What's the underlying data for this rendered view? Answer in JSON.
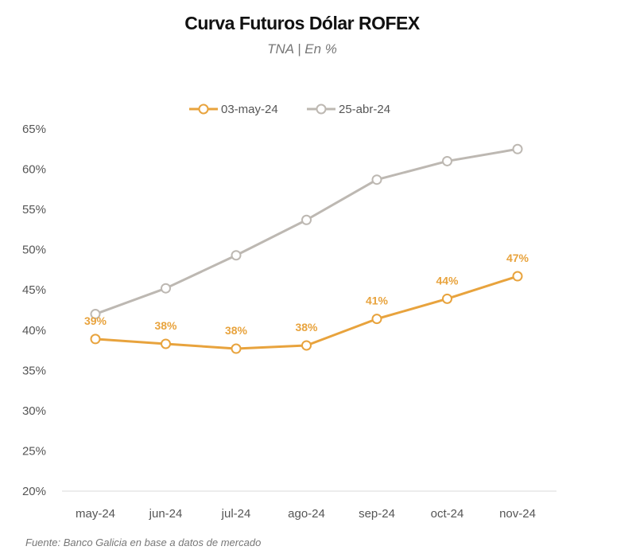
{
  "chart_data": {
    "type": "line",
    "title": "Curva Futuros Dólar ROFEX",
    "subtitle": "TNA | En %",
    "categories": [
      "may-24",
      "jun-24",
      "jul-24",
      "ago-24",
      "sep-24",
      "oct-24",
      "nov-24"
    ],
    "series": [
      {
        "name": "03-may-24",
        "color": "#e8a33d",
        "values": [
          38.9,
          38.3,
          37.7,
          38.1,
          41.4,
          43.9,
          46.7
        ],
        "labels": [
          "39%",
          "38%",
          "38%",
          "38%",
          "41%",
          "44%",
          "47%"
        ]
      },
      {
        "name": "25-abr-24",
        "color": "#bdb8b2",
        "values": [
          42.0,
          45.2,
          49.3,
          53.7,
          58.7,
          61.0,
          62.5
        ]
      }
    ],
    "y_ticks": [
      "20%",
      "25%",
      "30%",
      "35%",
      "40%",
      "45%",
      "50%",
      "55%",
      "60%",
      "65%"
    ],
    "ylim": [
      20,
      65
    ],
    "grid": false,
    "legend": "top"
  },
  "source": "Fuente: Banco Galicia en base a datos de mercado"
}
